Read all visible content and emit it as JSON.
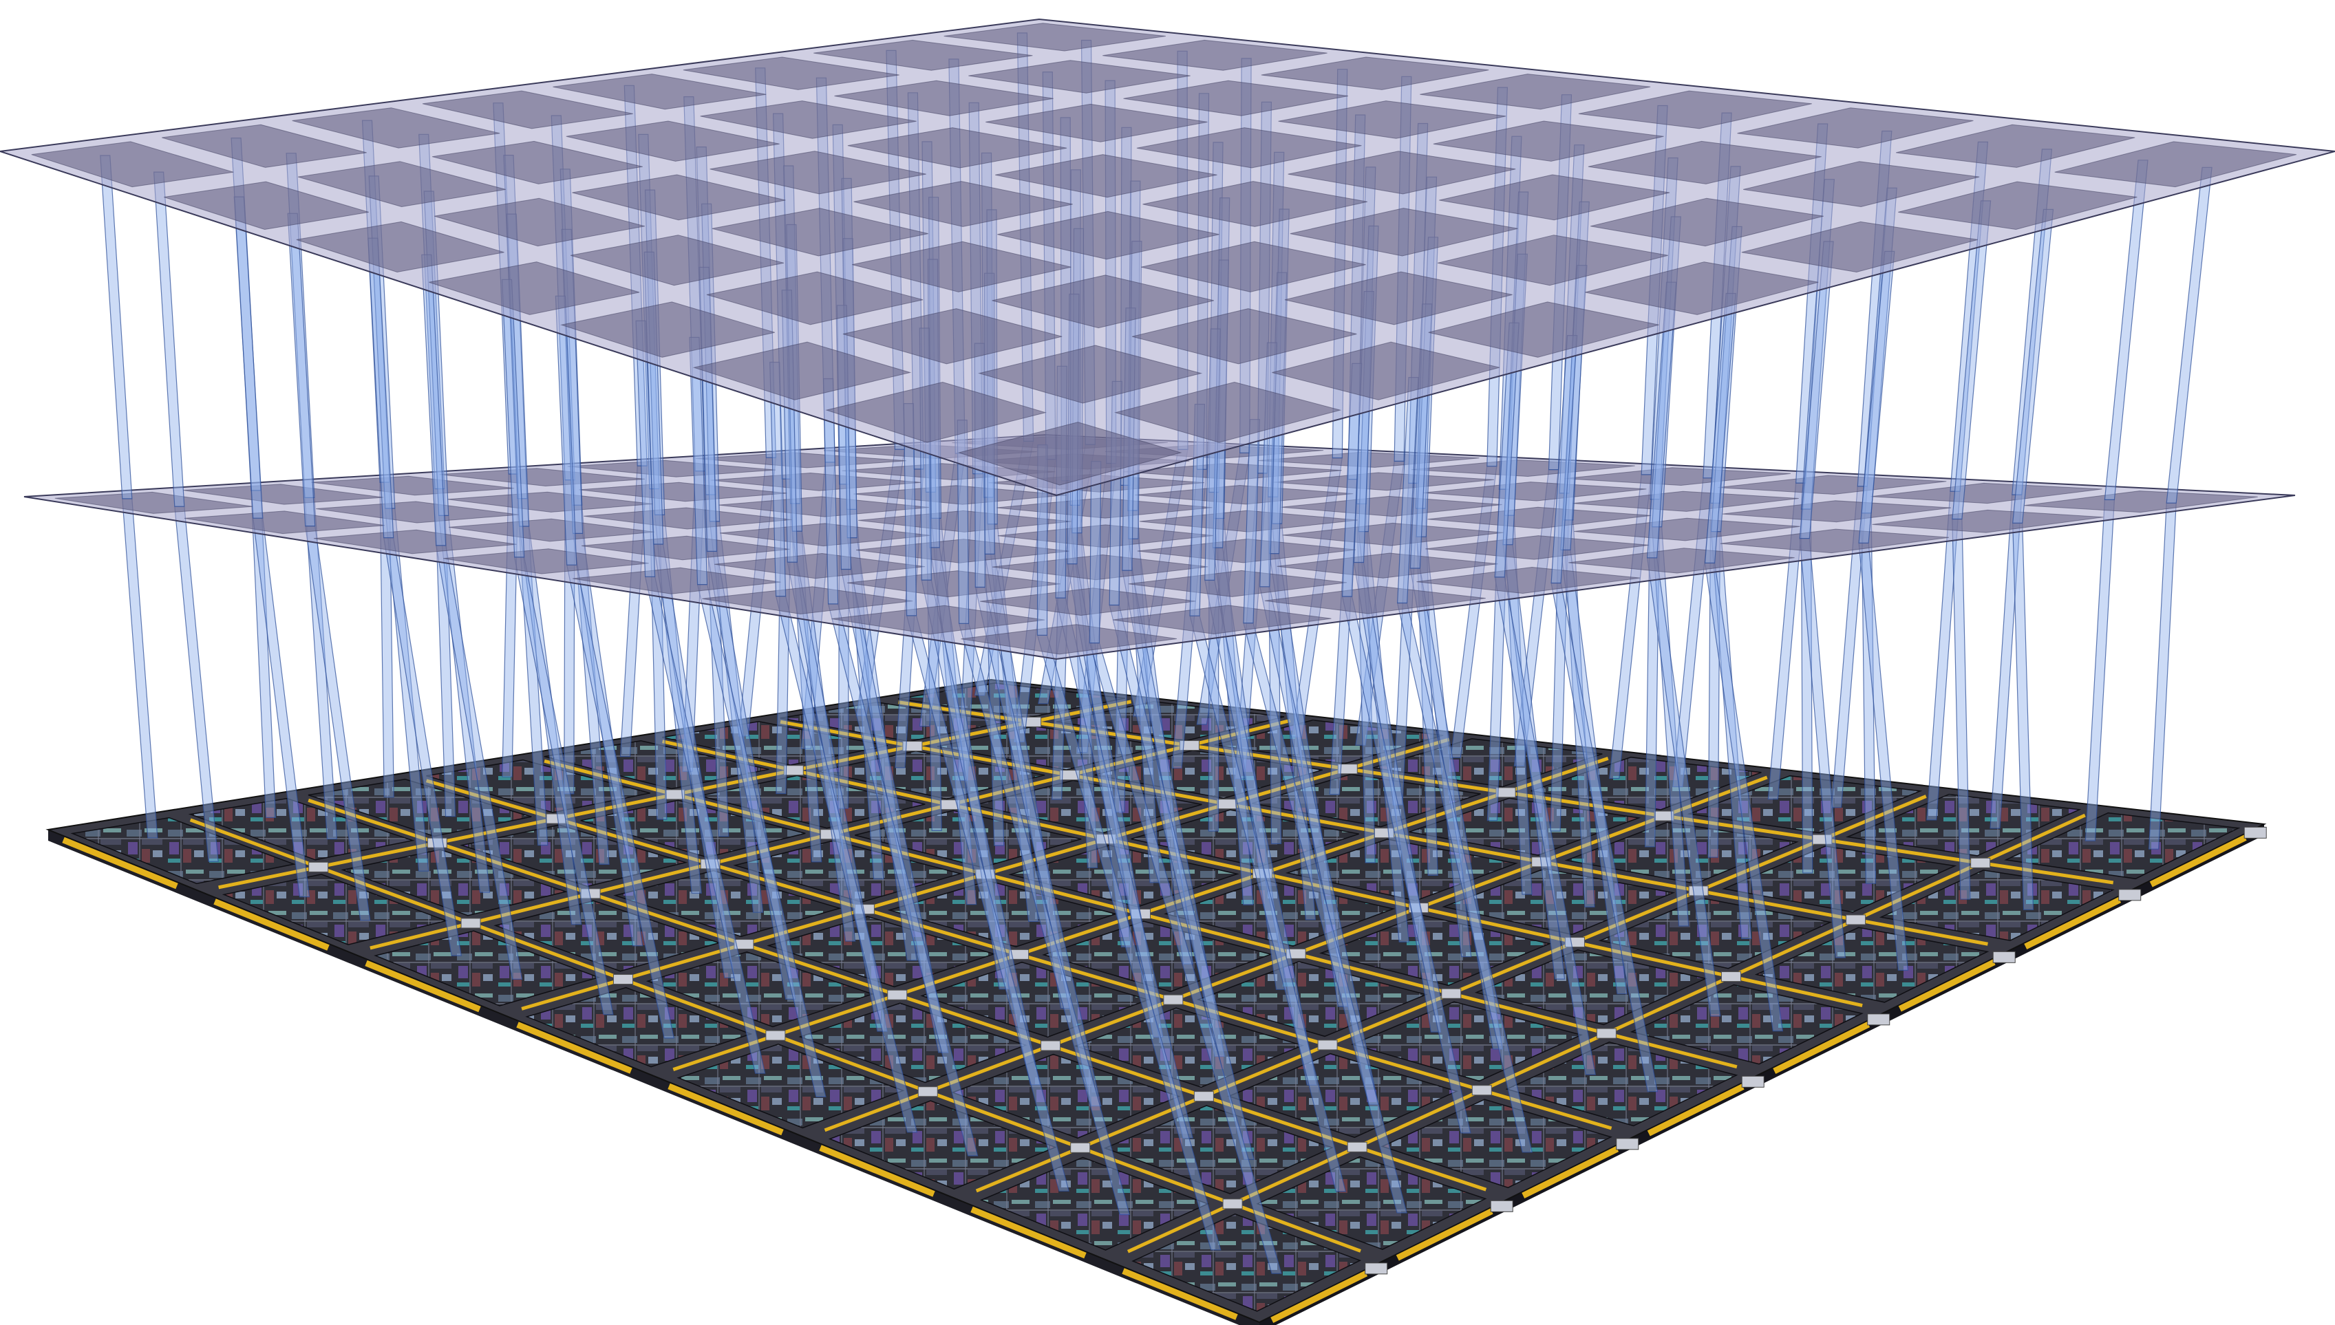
{
  "diagram": {
    "kind": "3D stacked chip architecture",
    "layer_count": 3,
    "grid_cells_per_side": 8,
    "layers": [
      {
        "id": "top",
        "role": "memory-plane",
        "has_pillars_from_below": true
      },
      {
        "id": "middle",
        "role": "memory-plane",
        "has_pillars_from_below": true
      },
      {
        "id": "base",
        "role": "processor-die-array",
        "has_pillars_from_below": false
      }
    ],
    "colors": {
      "background": "#ffffff",
      "plane_fill": "#aaa8cc",
      "plane_cell": "#5c5a7c",
      "plane_edge": "#3a3a5a",
      "pillar_fill": "#8fb0ec",
      "pillar_edge": "#2e4f98",
      "die_dark": "#2d2d37",
      "die_mid": "#45465a",
      "die_accent_teal": "#6f9898",
      "die_accent_purple": "#5e4a8c",
      "die_accent_red": "#6a3e46",
      "bus_gold": "#e3b21d",
      "bus_gold_dark": "#a07a0a",
      "connector_silver": "#c9ccd6"
    }
  }
}
